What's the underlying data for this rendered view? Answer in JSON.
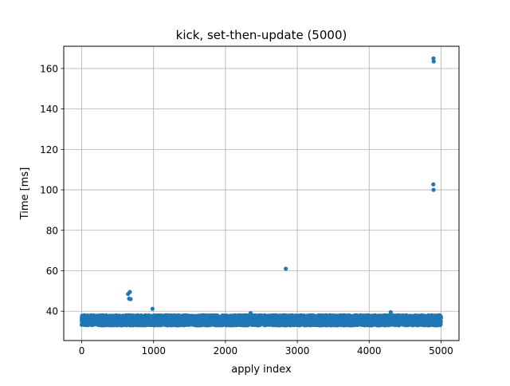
{
  "chart_data": {
    "type": "scatter",
    "title": "kick, set-then-update (5000)",
    "xlabel": "apply index",
    "ylabel": "Time [ms]",
    "xlim": [
      -250,
      5250
    ],
    "ylim": [
      25.5,
      171
    ],
    "x_ticks": [
      0,
      1000,
      2000,
      3000,
      4000,
      5000
    ],
    "y_ticks": [
      40,
      60,
      80,
      100,
      120,
      140,
      160
    ],
    "grid": true,
    "legend": "none",
    "marker_color": "#1f77b4",
    "series": [
      {
        "count": 5000,
        "typical_range_ms": [
          33,
          38
        ],
        "typical_center_ms": 35.5,
        "outliers": [
          {
            "x": 645,
            "y": 48.5
          },
          {
            "x": 670,
            "y": 49.5
          },
          {
            "x": 660,
            "y": 46.2
          },
          {
            "x": 680,
            "y": 46.0
          },
          {
            "x": 985,
            "y": 41.2
          },
          {
            "x": 2350,
            "y": 39.0
          },
          {
            "x": 2840,
            "y": 61.0
          },
          {
            "x": 4300,
            "y": 39.5
          },
          {
            "x": 4895,
            "y": 165.0
          },
          {
            "x": 4898,
            "y": 163.5
          },
          {
            "x": 4893,
            "y": 102.7
          },
          {
            "x": 4896,
            "y": 100.0
          }
        ]
      }
    ]
  }
}
